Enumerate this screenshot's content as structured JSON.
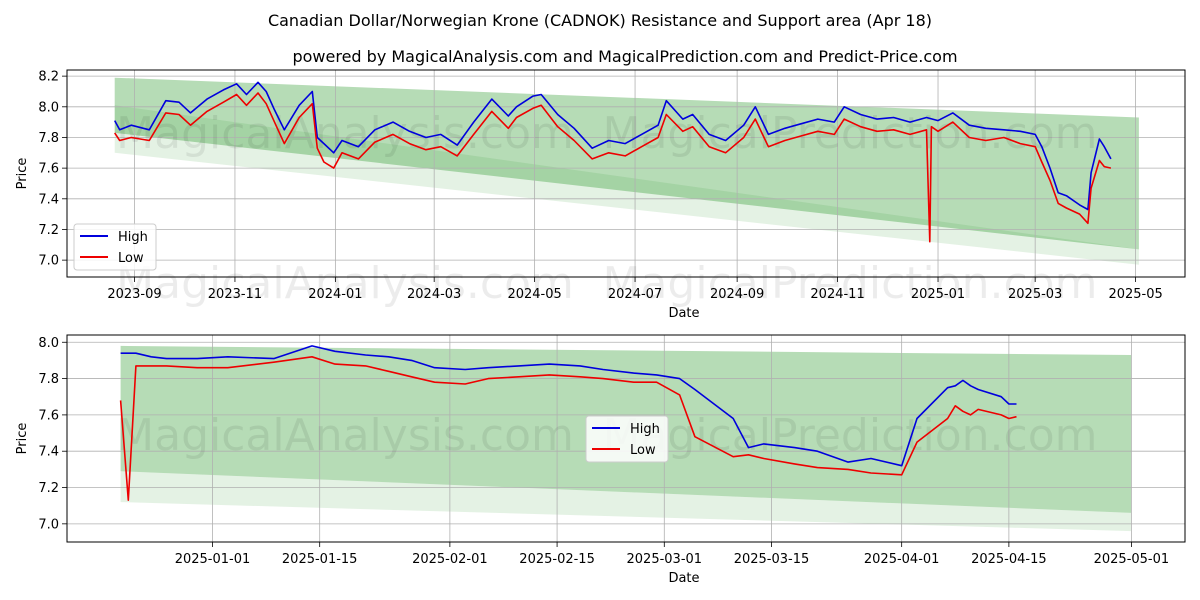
{
  "header": {
    "title": "Canadian Dollar/Norwegian Krone (CADNOK) Resistance and Support area (Apr 18)",
    "subtitle": "powered by MagicalAnalysis.com and MagicalPrediction.com and Predict-Price.com"
  },
  "watermarks": [
    "MagicalAnalysis.com",
    "MagicalPrediction.com"
  ],
  "colors": {
    "high": "#0000dd",
    "low": "#ee0000",
    "band_dark": "#2e9a2e",
    "band_light": "#2e9a2e",
    "grid": "#b0b0b0"
  },
  "chart_data": [
    {
      "type": "line",
      "xlabel": "Date",
      "ylabel": "Price",
      "x_ticks": [
        "2023-09",
        "2023-11",
        "2024-01",
        "2024-03",
        "2024-05",
        "2024-07",
        "2024-09",
        "2024-11",
        "2025-01",
        "2025-03",
        "2025-05"
      ],
      "y_ticks": [
        "7.0",
        "7.2",
        "7.4",
        "7.6",
        "7.8",
        "8.0",
        "8.2"
      ],
      "xlim": [
        "2023-07-22",
        "2025-05-31"
      ],
      "ylim": [
        6.89,
        8.24
      ],
      "grid": true,
      "legend": {
        "position": "lower-left",
        "entries": [
          "High",
          "Low"
        ]
      },
      "bands": [
        {
          "points": [
            [
              "2023-08-20",
              8.19
            ],
            [
              "2025-05-03",
              7.93
            ],
            [
              "2025-05-03",
              7.07
            ],
            [
              "2023-08-20",
              7.83
            ]
          ]
        },
        {
          "points": [
            [
              "2023-08-20",
              8.01
            ],
            [
              "2025-05-03",
              7.07
            ],
            [
              "2025-05-03",
              6.97
            ],
            [
              "2023-08-20",
              7.7
            ]
          ]
        }
      ],
      "series": [
        {
          "name": "High",
          "x": [
            "2023-08-20",
            "2023-08-23",
            "2023-08-30",
            "2023-09-10",
            "2023-09-20",
            "2023-09-28",
            "2023-10-05",
            "2023-10-15",
            "2023-10-25",
            "2023-11-02",
            "2023-11-08",
            "2023-11-15",
            "2023-11-20",
            "2023-11-25",
            "2023-12-01",
            "2023-12-10",
            "2023-12-18",
            "2023-12-21",
            "2023-12-25",
            "2023-12-31",
            "2024-01-05",
            "2024-01-15",
            "2024-01-25",
            "2024-02-05",
            "2024-02-15",
            "2024-02-25",
            "2024-03-05",
            "2024-03-15",
            "2024-03-25",
            "2024-04-05",
            "2024-04-15",
            "2024-04-20",
            "2024-04-30",
            "2024-05-05",
            "2024-05-15",
            "2024-05-25",
            "2024-06-05",
            "2024-06-15",
            "2024-06-25",
            "2024-07-05",
            "2024-07-15",
            "2024-07-20",
            "2024-07-30",
            "2024-08-05",
            "2024-08-15",
            "2024-08-25",
            "2024-09-05",
            "2024-09-12",
            "2024-09-20",
            "2024-09-30",
            "2024-10-10",
            "2024-10-20",
            "2024-10-30",
            "2024-11-05",
            "2024-11-15",
            "2024-11-25",
            "2024-12-05",
            "2024-12-15",
            "2024-12-25",
            "2025-01-01",
            "2025-01-10",
            "2025-01-20",
            "2025-01-30",
            "2025-02-10",
            "2025-02-20",
            "2025-03-01",
            "2025-03-05",
            "2025-03-10",
            "2025-03-15",
            "2025-03-20",
            "2025-03-28",
            "2025-04-02",
            "2025-04-04",
            "2025-04-09",
            "2025-04-12",
            "2025-04-16"
          ],
          "y": [
            7.91,
            7.85,
            7.88,
            7.85,
            8.04,
            8.03,
            7.96,
            8.05,
            8.11,
            8.15,
            8.08,
            8.16,
            8.1,
            7.98,
            7.85,
            8.01,
            8.1,
            7.8,
            7.76,
            7.7,
            7.78,
            7.74,
            7.85,
            7.9,
            7.84,
            7.8,
            7.82,
            7.75,
            7.9,
            8.05,
            7.94,
            8.0,
            8.07,
            8.08,
            7.95,
            7.86,
            7.73,
            7.78,
            7.76,
            7.82,
            7.88,
            8.04,
            7.92,
            7.95,
            7.82,
            7.78,
            7.88,
            8.0,
            7.82,
            7.86,
            7.89,
            7.92,
            7.9,
            8.0,
            7.95,
            7.92,
            7.93,
            7.9,
            7.93,
            7.91,
            7.96,
            7.88,
            7.86,
            7.85,
            7.84,
            7.82,
            7.74,
            7.6,
            7.44,
            7.42,
            7.36,
            7.33,
            7.57,
            7.79,
            7.74,
            7.66
          ]
        },
        {
          "name": "Low",
          "x": [
            "2023-08-20",
            "2023-08-23",
            "2023-08-30",
            "2023-09-10",
            "2023-09-20",
            "2023-09-28",
            "2023-10-05",
            "2023-10-15",
            "2023-10-25",
            "2023-11-02",
            "2023-11-08",
            "2023-11-15",
            "2023-11-20",
            "2023-11-25",
            "2023-12-01",
            "2023-12-10",
            "2023-12-18",
            "2023-12-21",
            "2023-12-25",
            "2023-12-31",
            "2024-01-05",
            "2024-01-15",
            "2024-01-25",
            "2024-02-05",
            "2024-02-15",
            "2024-02-25",
            "2024-03-05",
            "2024-03-15",
            "2024-03-25",
            "2024-04-05",
            "2024-04-15",
            "2024-04-20",
            "2024-04-30",
            "2024-05-05",
            "2024-05-15",
            "2024-05-25",
            "2024-06-05",
            "2024-06-15",
            "2024-06-25",
            "2024-07-05",
            "2024-07-15",
            "2024-07-20",
            "2024-07-30",
            "2024-08-05",
            "2024-08-15",
            "2024-08-25",
            "2024-09-05",
            "2024-09-12",
            "2024-09-20",
            "2024-09-30",
            "2024-10-10",
            "2024-10-20",
            "2024-10-30",
            "2024-11-05",
            "2024-11-15",
            "2024-11-25",
            "2024-12-05",
            "2024-12-15",
            "2024-12-25",
            "2024-12-27",
            "2024-12-28",
            "2025-01-01",
            "2025-01-10",
            "2025-01-20",
            "2025-01-30",
            "2025-02-10",
            "2025-02-20",
            "2025-03-01",
            "2025-03-05",
            "2025-03-10",
            "2025-03-15",
            "2025-03-20",
            "2025-03-28",
            "2025-04-02",
            "2025-04-04",
            "2025-04-09",
            "2025-04-12",
            "2025-04-16"
          ],
          "y": [
            7.83,
            7.78,
            7.8,
            7.78,
            7.96,
            7.95,
            7.88,
            7.97,
            8.03,
            8.08,
            8.01,
            8.09,
            8.02,
            7.9,
            7.76,
            7.93,
            8.02,
            7.73,
            7.64,
            7.6,
            7.7,
            7.66,
            7.77,
            7.82,
            7.76,
            7.72,
            7.74,
            7.68,
            7.82,
            7.97,
            7.86,
            7.93,
            7.99,
            8.01,
            7.87,
            7.78,
            7.66,
            7.7,
            7.68,
            7.74,
            7.8,
            7.95,
            7.84,
            7.87,
            7.74,
            7.7,
            7.8,
            7.92,
            7.74,
            7.78,
            7.81,
            7.84,
            7.82,
            7.92,
            7.87,
            7.84,
            7.85,
            7.82,
            7.85,
            7.12,
            7.87,
            7.84,
            7.9,
            7.8,
            7.78,
            7.8,
            7.76,
            7.74,
            7.64,
            7.52,
            7.37,
            7.34,
            7.3,
            7.24,
            7.47,
            7.65,
            7.61,
            7.6
          ]
        }
      ]
    },
    {
      "type": "line",
      "xlabel": "Date",
      "ylabel": "Price",
      "x_ticks": [
        "2025-01-01",
        "2025-01-15",
        "2025-02-01",
        "2025-02-15",
        "2025-03-01",
        "2025-03-15",
        "2025-04-01",
        "2025-04-15",
        "2025-05-01"
      ],
      "y_ticks": [
        "7.0",
        "7.2",
        "7.4",
        "7.6",
        "7.8",
        "8.0"
      ],
      "xlim": [
        "2024-12-13",
        "2025-05-08"
      ],
      "ylim": [
        6.9,
        8.04
      ],
      "grid": true,
      "legend": {
        "position": "center",
        "entries": [
          "High",
          "Low"
        ]
      },
      "bands": [
        {
          "points": [
            [
              "2024-12-20",
              7.98
            ],
            [
              "2025-05-01",
              7.93
            ],
            [
              "2025-05-01",
              7.06
            ],
            [
              "2024-12-20",
              7.29
            ]
          ]
        },
        {
          "points": [
            [
              "2024-12-20",
              7.29
            ],
            [
              "2025-05-01",
              7.06
            ],
            [
              "2025-05-01",
              6.96
            ],
            [
              "2024-12-20",
              7.12
            ]
          ]
        }
      ],
      "series": [
        {
          "name": "High",
          "x": [
            "2024-12-20",
            "2024-12-22",
            "2024-12-24",
            "2024-12-26",
            "2024-12-30",
            "2025-01-03",
            "2025-01-09",
            "2025-01-14",
            "2025-01-17",
            "2025-01-21",
            "2025-01-24",
            "2025-01-27",
            "2025-01-30",
            "2025-02-03",
            "2025-02-06",
            "2025-02-10",
            "2025-02-14",
            "2025-02-18",
            "2025-02-21",
            "2025-02-25",
            "2025-02-28",
            "2025-03-03",
            "2025-03-05",
            "2025-03-10",
            "2025-03-12",
            "2025-03-14",
            "2025-03-18",
            "2025-03-21",
            "2025-03-25",
            "2025-03-28",
            "2025-04-01",
            "2025-04-03",
            "2025-04-07",
            "2025-04-08",
            "2025-04-09",
            "2025-04-10",
            "2025-04-11",
            "2025-04-14",
            "2025-04-15",
            "2025-04-16"
          ],
          "y": [
            7.94,
            7.94,
            7.92,
            7.91,
            7.91,
            7.92,
            7.91,
            7.98,
            7.95,
            7.93,
            7.92,
            7.9,
            7.86,
            7.85,
            7.86,
            7.87,
            7.88,
            7.87,
            7.85,
            7.83,
            7.82,
            7.8,
            7.74,
            7.58,
            7.42,
            7.44,
            7.42,
            7.4,
            7.34,
            7.36,
            7.32,
            7.58,
            7.75,
            7.76,
            7.79,
            7.76,
            7.74,
            7.7,
            7.66,
            7.66
          ]
        },
        {
          "name": "Low",
          "x": [
            "2024-12-20",
            "2024-12-21",
            "2024-12-22",
            "2024-12-23",
            "2024-12-26",
            "2024-12-30",
            "2025-01-03",
            "2025-01-09",
            "2025-01-14",
            "2025-01-17",
            "2025-01-21",
            "2025-01-24",
            "2025-01-27",
            "2025-01-30",
            "2025-02-03",
            "2025-02-06",
            "2025-02-10",
            "2025-02-14",
            "2025-02-18",
            "2025-02-21",
            "2025-02-25",
            "2025-02-28",
            "2025-03-03",
            "2025-03-05",
            "2025-03-10",
            "2025-03-12",
            "2025-03-14",
            "2025-03-18",
            "2025-03-21",
            "2025-03-25",
            "2025-03-28",
            "2025-04-01",
            "2025-04-03",
            "2025-04-07",
            "2025-04-08",
            "2025-04-09",
            "2025-04-10",
            "2025-04-11",
            "2025-04-14",
            "2025-04-15",
            "2025-04-16"
          ],
          "y": [
            7.68,
            7.13,
            7.87,
            7.87,
            7.87,
            7.86,
            7.86,
            7.89,
            7.92,
            7.88,
            7.87,
            7.84,
            7.81,
            7.78,
            7.77,
            7.8,
            7.81,
            7.82,
            7.81,
            7.8,
            7.78,
            7.78,
            7.71,
            7.48,
            7.37,
            7.38,
            7.36,
            7.33,
            7.31,
            7.3,
            7.28,
            7.27,
            7.45,
            7.58,
            7.65,
            7.62,
            7.6,
            7.63,
            7.6,
            7.58,
            7.59
          ]
        }
      ]
    }
  ]
}
